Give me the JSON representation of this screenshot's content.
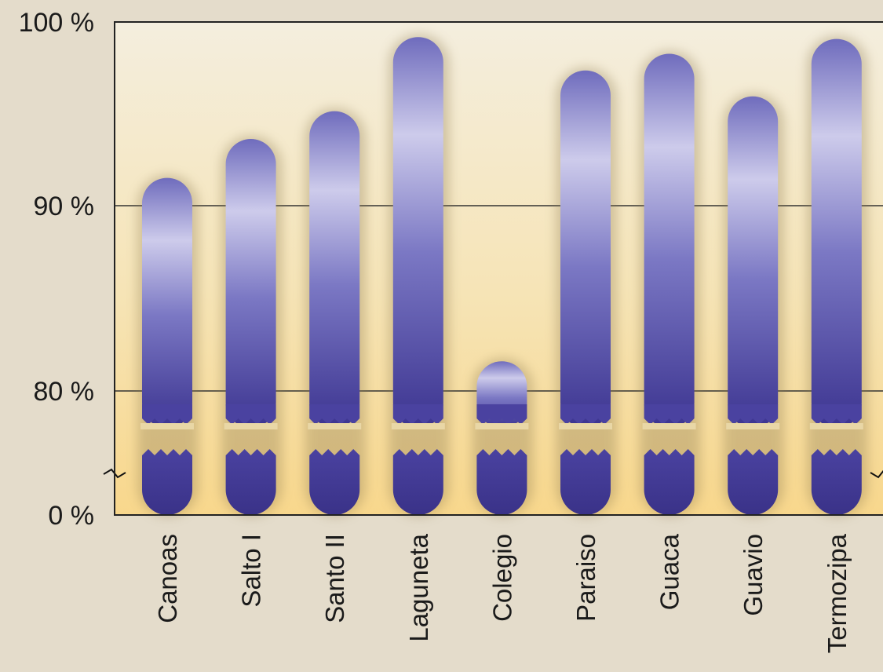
{
  "chart_data": {
    "type": "bar",
    "title": "",
    "xlabel": "",
    "ylabel": "",
    "y_axis": {
      "broken": true,
      "break_between": [
        0,
        77
      ],
      "ticks": [
        {
          "value": 0,
          "label": "0 %"
        },
        {
          "value": 80,
          "label": "80 %"
        },
        {
          "value": 90,
          "label": "90 %"
        },
        {
          "value": 100,
          "label": "100 %"
        }
      ]
    },
    "ylim": [
      0,
      100
    ],
    "grid": true,
    "categories": [
      "Canoas",
      "Salto I",
      "Santo II",
      "Laguneta",
      "Colegio",
      "Paraiso",
      "Guaca",
      "Guavio",
      "Termozipa"
    ],
    "values": [
      91.5,
      93.6,
      95.1,
      99.1,
      81.6,
      97.3,
      98.2,
      95.9,
      99.0
    ]
  },
  "colors": {
    "plot_background_top": "#f4eede",
    "plot_background_bottom": "#f8d78c",
    "bar_dark": "#3c3490",
    "bar_mid": "#6f6cbd",
    "bar_light": "#cdcbeb",
    "page_background": "#e4dccb"
  }
}
